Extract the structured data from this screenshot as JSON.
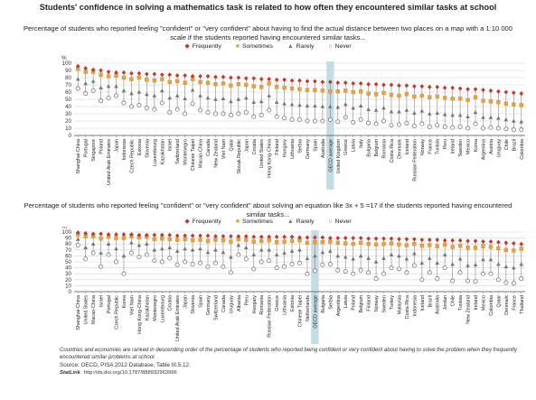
{
  "title": "Students' confidence in solving a mathematics task is related to how often they encountered similar tasks at school",
  "legend": {
    "frequently": "Frequently",
    "sometimes": "Sometimes",
    "rarely": "Rarely",
    "never": "Never"
  },
  "colors": {
    "frequently": "#c0392b",
    "sometimes": "#e8a33c",
    "rarely": "#777777",
    "never": "#666666",
    "oecd_band": "#b9d7e3"
  },
  "footer": {
    "note": "Countries and economies are ranked in descending order of the percentage of students who reported being confident or very confident about having to solve the problem when they frequently encountered similar problems at school.",
    "source": "Source: OECD, PISA 2012 Database, Table III.5.12.",
    "statlink_label": "StatLink",
    "statlink_url": "http://dx.doi.org/10.1787/888932963996"
  },
  "chart_data": [
    {
      "type": "scatter",
      "title": "Percentage of students who reported feeling \"confident\" or \"very confident\" about having to find the actual distance between two places on a map with a 1:10 000 scale if the students reported having encountered similar tasks...",
      "ylabel": "%",
      "ylim": [
        0,
        100
      ],
      "yticks": [
        0,
        10,
        20,
        30,
        40,
        50,
        60,
        70,
        80,
        90,
        100
      ],
      "highlight": "OECD average",
      "categories": [
        "Shanghai-China",
        "Portugal",
        "Singapore",
        "Poland",
        "United Arab Emirates",
        "Japan",
        "Indonesia",
        "Czech Republic",
        "Estonia",
        "Slovenia",
        "Luxembourg",
        "Kazakhstan",
        "Israel",
        "Switzerland",
        "Montenegro",
        "Chinese Taipei",
        "Macao-China",
        "Canada",
        "New Zealand",
        "Viet Nam",
        "Qatar",
        "Slovak Republic",
        "Japan",
        "Croatia",
        "United States",
        "Hong Kong-China",
        "Finland",
        "Hungary",
        "Lithuania",
        "Serbia",
        "Germany",
        "Spain",
        "Australia",
        "OECD average",
        "United Kingdom",
        "Greece",
        "Latvia",
        "Italy",
        "Bulgaria",
        "Belgium",
        "Romania",
        "Costa Rica",
        "Denmark",
        "Iceland",
        "Russian Federation",
        "Norway",
        "France",
        "Tunisia",
        "Peru",
        "Ireland",
        "Sweden",
        "Mexico",
        "Korea",
        "Argentina",
        "Austria",
        "Uruguay",
        "Chile",
        "Brazil",
        "Colombia"
      ],
      "series": [
        {
          "name": "Frequently",
          "values": [
            96,
            93,
            91,
            90,
            88,
            87,
            87,
            86,
            86,
            85,
            85,
            84,
            84,
            83,
            83,
            82,
            82,
            82,
            81,
            81,
            80,
            80,
            79,
            79,
            78,
            78,
            77,
            77,
            76,
            76,
            75,
            75,
            74,
            74,
            73,
            73,
            72,
            72,
            71,
            71,
            70,
            70,
            69,
            69,
            68,
            68,
            67,
            67,
            66,
            66,
            65,
            64,
            64,
            63,
            62,
            61,
            60,
            59,
            58
          ]
        },
        {
          "name": "Sometimes",
          "values": [
            92,
            88,
            88,
            84,
            82,
            83,
            80,
            78,
            80,
            77,
            76,
            78,
            74,
            75,
            73,
            78,
            74,
            73,
            71,
            72,
            69,
            71,
            70,
            68,
            67,
            72,
            67,
            66,
            65,
            64,
            63,
            63,
            62,
            61,
            61,
            62,
            60,
            61,
            58,
            57,
            59,
            56,
            55,
            57,
            54,
            55,
            53,
            54,
            52,
            51,
            51,
            49,
            53,
            48,
            47,
            46,
            44,
            43,
            42
          ]
        },
        {
          "name": "Rarely",
          "values": [
            78,
            72,
            75,
            66,
            68,
            68,
            62,
            58,
            60,
            57,
            55,
            62,
            52,
            55,
            51,
            63,
            55,
            52,
            50,
            51,
            47,
            50,
            52,
            46,
            47,
            55,
            46,
            44,
            43,
            42,
            41,
            41,
            40,
            40,
            39,
            43,
            38,
            41,
            36,
            35,
            38,
            33,
            33,
            35,
            31,
            34,
            30,
            31,
            29,
            28,
            28,
            26,
            32,
            25,
            25,
            24,
            22,
            20,
            19
          ]
        },
        {
          "name": "Never",
          "values": [
            65,
            58,
            62,
            48,
            52,
            55,
            45,
            40,
            42,
            38,
            36,
            45,
            32,
            36,
            30,
            44,
            35,
            32,
            30,
            30,
            28,
            30,
            32,
            26,
            28,
            35,
            26,
            24,
            22,
            22,
            20,
            20,
            20,
            22,
            19,
            25,
            18,
            22,
            17,
            16,
            20,
            14,
            15,
            17,
            13,
            16,
            12,
            14,
            12,
            11,
            12,
            10,
            16,
            10,
            11,
            10,
            9,
            8,
            8
          ]
        }
      ]
    },
    {
      "type": "scatter",
      "title": "Percentage of students who reported feeling \"confident\" or \"very confident\" about solving an equation like 3x + 5 =17 if the students reported having encountered similar tasks...",
      "ylabel": "%",
      "ylim": [
        0,
        100
      ],
      "yticks": [
        0,
        10,
        20,
        30,
        40,
        50,
        60,
        70,
        80,
        90,
        100
      ],
      "highlight": "OECD average",
      "categories": [
        "Shanghai-China",
        "United States",
        "Macao-China",
        "Israel",
        "Portugal",
        "Czech Republic",
        "Korea",
        "Viet Nam",
        "Hong Kong-China",
        "Kazakhstan",
        "Montenegro",
        "Luxembourg",
        "Croatia",
        "United Arab Emirates",
        "Japan",
        "Slovenia",
        "Spain",
        "Germany",
        "Switzerland",
        "Canada",
        "Uruguay",
        "Albania",
        "Peru",
        "Hungary",
        "Romania",
        "Russian Federation",
        "Greece",
        "Lithuania",
        "Estonia",
        "Chinese Taipei",
        "Netherlands",
        "OECD average",
        "Bulgaria",
        "Serbia",
        "Argentina",
        "Latvia",
        "Poland",
        "Belgium",
        "Finland",
        "Norway",
        "Sweden",
        "Turkey",
        "Malaysia",
        "Costa Rica",
        "Indonesia",
        "Iceland",
        "Brazil",
        "Australia",
        "Jordan",
        "Chile",
        "Tunisia",
        "New Zealand",
        "Ireland",
        "Mexico",
        "Colombia",
        "Qatar",
        "Denmark",
        "France",
        "Thailand"
      ],
      "series": [
        {
          "name": "Frequently",
          "values": [
            99,
            98,
            97,
            97,
            96,
            96,
            96,
            96,
            95,
            95,
            95,
            95,
            95,
            94,
            94,
            94,
            94,
            94,
            93,
            93,
            93,
            93,
            93,
            92,
            92,
            92,
            92,
            92,
            92,
            91,
            91,
            91,
            91,
            90,
            90,
            90,
            90,
            90,
            89,
            89,
            89,
            89,
            88,
            88,
            88,
            87,
            87,
            87,
            86,
            86,
            86,
            85,
            85,
            84,
            84,
            83,
            82,
            81,
            80
          ]
        },
        {
          "name": "Sometimes",
          "values": [
            96,
            93,
            93,
            89,
            92,
            90,
            90,
            93,
            91,
            92,
            88,
            89,
            88,
            87,
            88,
            86,
            87,
            85,
            87,
            86,
            84,
            88,
            87,
            84,
            85,
            86,
            83,
            84,
            85,
            86,
            82,
            83,
            83,
            84,
            82,
            81,
            80,
            82,
            80,
            79,
            80,
            81,
            79,
            78,
            80,
            77,
            78,
            76,
            79,
            75,
            77,
            74,
            74,
            76,
            75,
            73,
            70,
            69,
            72
          ]
        },
        {
          "name": "Rarely",
          "values": [
            88,
            74,
            80,
            65,
            80,
            72,
            60,
            82,
            78,
            80,
            70,
            72,
            74,
            68,
            72,
            70,
            72,
            66,
            70,
            66,
            58,
            78,
            74,
            62,
            70,
            70,
            62,
            65,
            68,
            70,
            56,
            60,
            66,
            68,
            60,
            58,
            55,
            60,
            56,
            50,
            56,
            62,
            60,
            55,
            64,
            48,
            56,
            48,
            62,
            46,
            55,
            44,
            45,
            54,
            54,
            46,
            42,
            40,
            46
          ]
        },
        {
          "name": "Never",
          "values": [
            78,
            55,
            65,
            42,
            62,
            50,
            30,
            65,
            58,
            62,
            52,
            50,
            56,
            45,
            50,
            46,
            48,
            42,
            48,
            42,
            32,
            62,
            55,
            38,
            50,
            52,
            40,
            42,
            46,
            48,
            30,
            35,
            45,
            46,
            36,
            34,
            30,
            36,
            32,
            22,
            30,
            40,
            38,
            32,
            44,
            20,
            32,
            22,
            40,
            18,
            32,
            18,
            17,
            30,
            30,
            20,
            15,
            14,
            22
          ]
        }
      ]
    }
  ]
}
